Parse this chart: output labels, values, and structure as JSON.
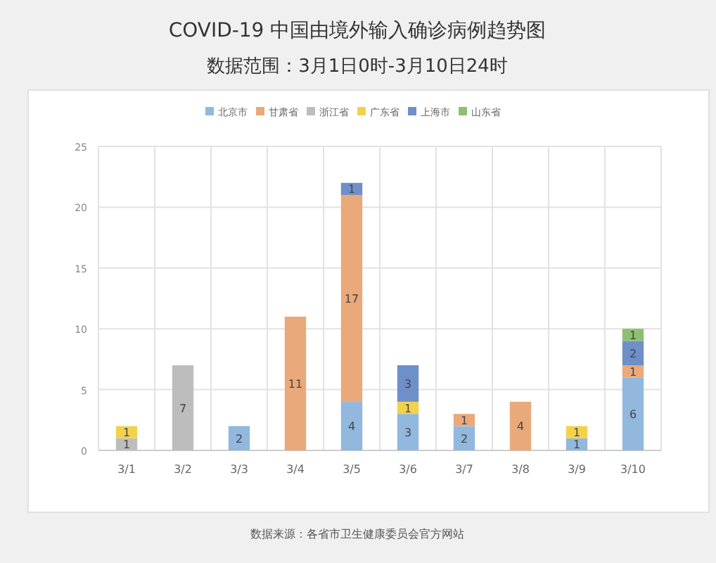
{
  "chart_data": {
    "type": "bar",
    "stacked": true,
    "title": "COVID-19 中国由境外输入确诊病例趋势图",
    "subtitle": "数据范围：3月1日0时-3月10日24时",
    "categories": [
      "3/1",
      "3/2",
      "3/3",
      "3/4",
      "3/5",
      "3/6",
      "3/7",
      "3/8",
      "3/9",
      "3/10"
    ],
    "series": [
      {
        "name": "北京市",
        "color": "#92b8de",
        "values": [
          null,
          null,
          2,
          null,
          4,
          3,
          2,
          null,
          1,
          6
        ]
      },
      {
        "name": "甘肃省",
        "color": "#e9a97a",
        "values": [
          null,
          null,
          null,
          11,
          17,
          null,
          1,
          4,
          null,
          1
        ]
      },
      {
        "name": "浙江省",
        "color": "#bdbdbd",
        "values": [
          1,
          7,
          null,
          null,
          null,
          null,
          null,
          null,
          null,
          null
        ]
      },
      {
        "name": "广东省",
        "color": "#f3d24b",
        "values": [
          1,
          null,
          null,
          null,
          null,
          1,
          null,
          null,
          1,
          null
        ]
      },
      {
        "name": "上海市",
        "color": "#6f8fc9",
        "values": [
          null,
          null,
          null,
          null,
          1,
          3,
          null,
          null,
          null,
          2
        ]
      },
      {
        "name": "山东省",
        "color": "#8dbf72",
        "values": [
          null,
          null,
          null,
          null,
          null,
          null,
          null,
          null,
          null,
          1
        ]
      }
    ],
    "ylim": [
      0,
      25
    ],
    "yticks": [
      0,
      5,
      10,
      15,
      20,
      25
    ],
    "grid": true,
    "legend": "top",
    "data_labels": true,
    "annotations": [
      "数据来源：各省市卫生健康委员会官方网站"
    ]
  }
}
